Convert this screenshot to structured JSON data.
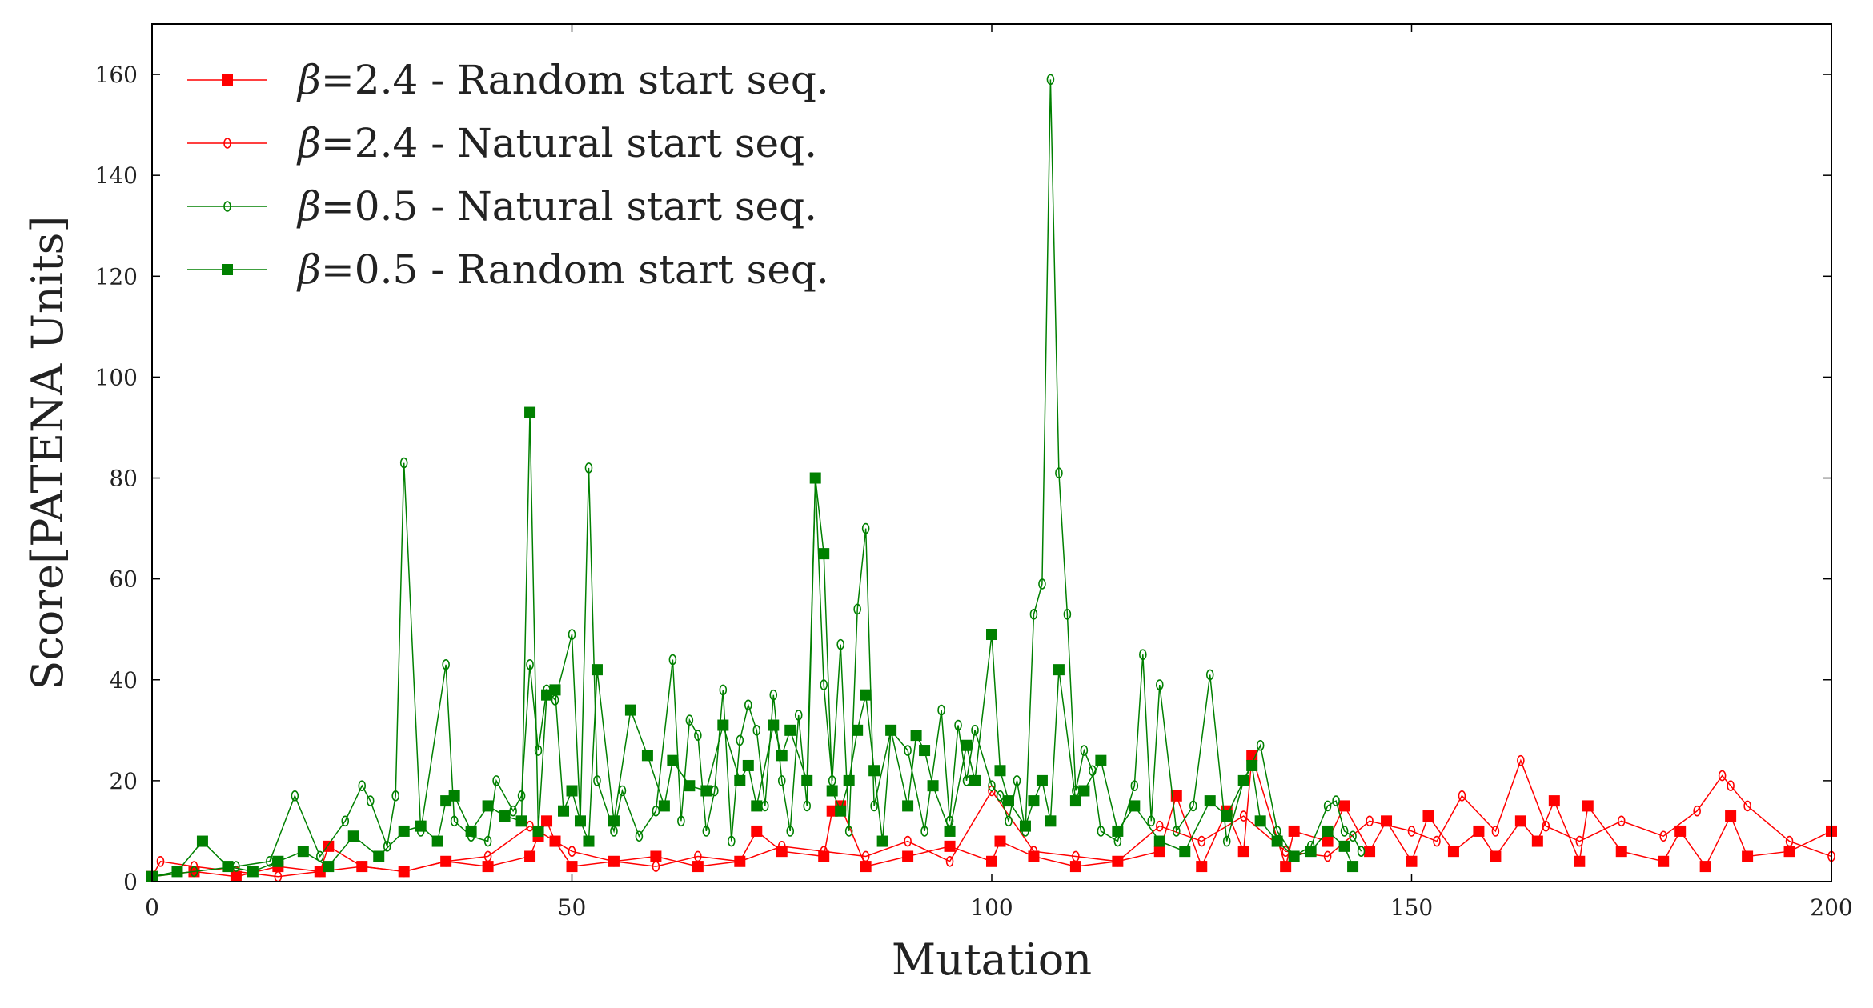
{
  "chart_data": {
    "type": "line",
    "xlabel": "Mutation",
    "ylabel": "Score[PATENA Units]",
    "xlim": [
      0,
      200
    ],
    "ylim": [
      0,
      170
    ],
    "xticks": [
      0,
      50,
      100,
      150,
      200
    ],
    "yticks": [
      0,
      20,
      40,
      60,
      80,
      100,
      120,
      140,
      160
    ],
    "grid": false,
    "legend_position": "top-left",
    "series": [
      {
        "name": "β=2.4 - Random start seq.",
        "legend_beta": "β",
        "legend_rest": "=2.4 - Random start seq.",
        "color": "#ff0000",
        "marker": "square",
        "x": [
          0,
          5,
          10,
          15,
          20,
          21,
          25,
          30,
          35,
          40,
          45,
          46,
          47,
          48,
          50,
          55,
          60,
          65,
          70,
          72,
          75,
          80,
          81,
          82,
          85,
          90,
          95,
          100,
          101,
          105,
          110,
          115,
          120,
          122,
          125,
          128,
          130,
          131,
          135,
          136,
          140,
          142,
          145,
          147,
          150,
          152,
          155,
          158,
          160,
          163,
          165,
          167,
          170,
          171,
          175,
          180,
          182,
          185,
          188,
          190,
          195,
          200
        ],
        "y": [
          1,
          2,
          1,
          3,
          2,
          7,
          3,
          2,
          4,
          3,
          5,
          9,
          12,
          8,
          3,
          4,
          5,
          3,
          4,
          10,
          6,
          5,
          14,
          15,
          3,
          5,
          7,
          4,
          8,
          5,
          3,
          4,
          6,
          17,
          3,
          14,
          6,
          25,
          3,
          10,
          8,
          15,
          6,
          12,
          4,
          13,
          6,
          10,
          5,
          12,
          8,
          16,
          4,
          15,
          6,
          4,
          10,
          3,
          13,
          5,
          6,
          10
        ]
      },
      {
        "name": "β=2.4 - Natural start seq.",
        "legend_beta": "β",
        "legend_rest": "=2.4 - Natural start seq.",
        "color": "#ff0000",
        "marker": "circle",
        "x": [
          0,
          1,
          5,
          10,
          15,
          20,
          25,
          30,
          35,
          40,
          45,
          50,
          55,
          60,
          65,
          70,
          75,
          80,
          85,
          90,
          95,
          100,
          105,
          110,
          115,
          120,
          125,
          130,
          135,
          140,
          145,
          150,
          153,
          156,
          160,
          163,
          166,
          170,
          175,
          180,
          184,
          187,
          188,
          190,
          195,
          200
        ],
        "y": [
          1,
          4,
          3,
          2,
          1,
          2,
          3,
          2,
          4,
          5,
          11,
          6,
          4,
          3,
          5,
          4,
          7,
          6,
          5,
          8,
          4,
          18,
          6,
          5,
          4,
          11,
          8,
          13,
          6,
          5,
          12,
          10,
          8,
          17,
          10,
          24,
          11,
          8,
          12,
          9,
          14,
          21,
          19,
          15,
          8,
          5
        ]
      },
      {
        "name": "β=0.5 - Natural start seq.",
        "legend_beta": "β",
        "legend_rest": "=0.5 - Natural start seq.",
        "color": "#008000",
        "marker": "circle",
        "x": [
          0,
          5,
          10,
          14,
          17,
          20,
          23,
          25,
          26,
          28,
          29,
          30,
          32,
          35,
          36,
          38,
          40,
          41,
          43,
          44,
          45,
          46,
          47,
          48,
          50,
          51,
          52,
          53,
          55,
          56,
          58,
          60,
          62,
          63,
          64,
          65,
          66,
          67,
          68,
          69,
          70,
          71,
          72,
          73,
          74,
          75,
          76,
          77,
          78,
          79,
          80,
          81,
          82,
          83,
          84,
          85,
          86,
          88,
          90,
          92,
          94,
          95,
          96,
          97,
          98,
          100,
          101,
          102,
          103,
          104,
          105,
          106,
          107,
          108,
          109,
          110,
          111,
          112,
          113,
          115,
          117,
          118,
          119,
          120,
          122,
          124,
          126,
          128,
          130,
          132,
          134,
          136,
          138,
          140,
          141,
          142,
          143,
          144
        ],
        "y": [
          1,
          2,
          3,
          4,
          17,
          5,
          12,
          19,
          16,
          7,
          17,
          83,
          10,
          43,
          12,
          9,
          8,
          20,
          14,
          17,
          43,
          26,
          38,
          36,
          49,
          12,
          82,
          20,
          10,
          18,
          9,
          14,
          44,
          12,
          32,
          29,
          10,
          18,
          38,
          8,
          28,
          35,
          30,
          15,
          37,
          20,
          10,
          33,
          15,
          80,
          39,
          20,
          47,
          10,
          54,
          70,
          15,
          30,
          26,
          10,
          34,
          12,
          31,
          20,
          30,
          19,
          17,
          12,
          20,
          10,
          53,
          59,
          159,
          81,
          53,
          18,
          26,
          22,
          10,
          8,
          19,
          45,
          12,
          39,
          10,
          15,
          41,
          8,
          20,
          27,
          10,
          5,
          7,
          15,
          16,
          10,
          9,
          6
        ]
      },
      {
        "name": "β=0.5 - Random start seq.",
        "legend_beta": "β",
        "legend_rest": "=0.5 - Random start seq.",
        "color": "#008000",
        "marker": "square",
        "x": [
          0,
          3,
          6,
          9,
          12,
          15,
          18,
          21,
          24,
          27,
          30,
          32,
          34,
          35,
          36,
          38,
          40,
          42,
          44,
          45,
          46,
          47,
          48,
          49,
          50,
          51,
          52,
          53,
          55,
          57,
          59,
          61,
          62,
          64,
          66,
          68,
          70,
          71,
          72,
          74,
          75,
          76,
          78,
          79,
          80,
          81,
          82,
          83,
          84,
          85,
          86,
          87,
          88,
          90,
          91,
          92,
          93,
          95,
          97,
          98,
          100,
          101,
          102,
          104,
          105,
          106,
          107,
          108,
          110,
          111,
          113,
          115,
          117,
          120,
          123,
          126,
          128,
          130,
          131,
          132,
          134,
          136,
          138,
          140,
          142,
          143
        ],
        "y": [
          1,
          2,
          8,
          3,
          2,
          4,
          6,
          3,
          9,
          5,
          10,
          11,
          8,
          16,
          17,
          10,
          15,
          13,
          12,
          93,
          10,
          37,
          38,
          14,
          18,
          12,
          8,
          42,
          12,
          34,
          25,
          15,
          24,
          19,
          18,
          31,
          20,
          23,
          15,
          31,
          25,
          30,
          20,
          80,
          65,
          18,
          14,
          20,
          30,
          37,
          22,
          8,
          30,
          15,
          29,
          26,
          19,
          10,
          27,
          20,
          49,
          22,
          16,
          11,
          16,
          20,
          12,
          42,
          16,
          18,
          24,
          10,
          15,
          8,
          6,
          16,
          13,
          20,
          23,
          12,
          8,
          5,
          6,
          10,
          7,
          3
        ]
      }
    ]
  }
}
